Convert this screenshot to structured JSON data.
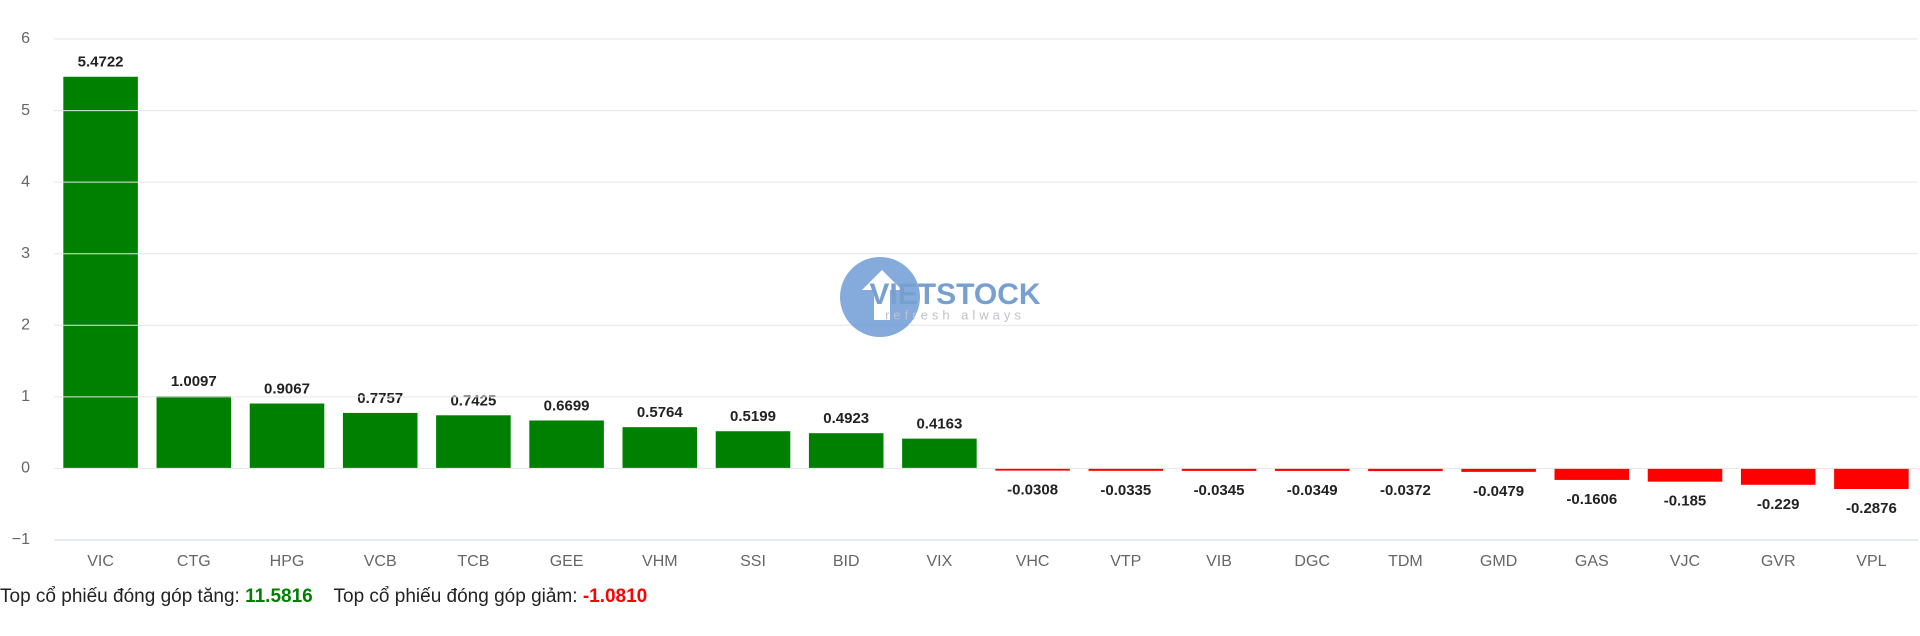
{
  "chart_data": {
    "type": "bar",
    "categories": [
      "VIC",
      "CTG",
      "HPG",
      "VCB",
      "TCB",
      "GEE",
      "VHM",
      "SSI",
      "BID",
      "VIX",
      "VHC",
      "VTP",
      "VIB",
      "DGC",
      "TDM",
      "GMD",
      "GAS",
      "VJC",
      "GVR",
      "VPL"
    ],
    "values": [
      5.4722,
      1.0097,
      0.9067,
      0.7757,
      0.7425,
      0.6699,
      0.5764,
      0.5199,
      0.4923,
      0.4163,
      -0.0308,
      -0.0335,
      -0.0345,
      -0.0349,
      -0.0372,
      -0.0479,
      -0.1606,
      -0.185,
      -0.229,
      -0.2876
    ],
    "positive_color": "#008000",
    "negative_color": "#ff0000",
    "ylim": [
      -1,
      6
    ],
    "yticks": [
      {
        "value": -1,
        "label": "−1"
      },
      0,
      1,
      2,
      3,
      4,
      5,
      6
    ],
    "grid": true,
    "watermark": {
      "brand": "VIETSTOCK",
      "tagline": "refresh always"
    }
  },
  "footer": {
    "gain_label": "Top cổ phiếu đóng góp tăng:",
    "gain_value": "11.5816",
    "loss_label": "Top cổ phiếu đóng góp giảm:",
    "loss_value": "-1.0810"
  }
}
